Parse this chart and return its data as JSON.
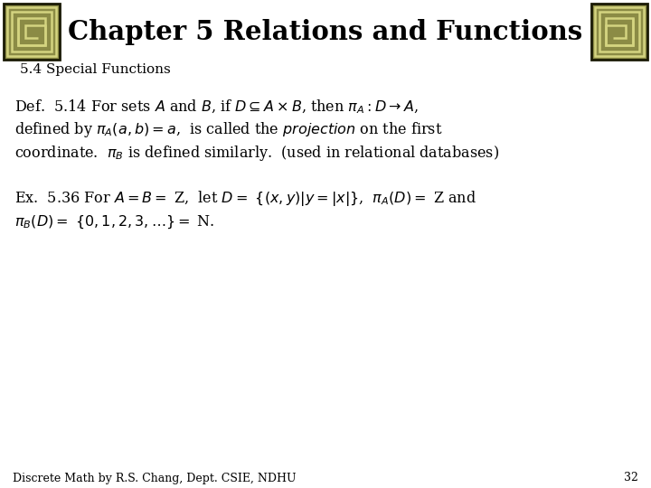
{
  "title": "Chapter 5 Relations and Functions",
  "subtitle": "5.4 Special Functions",
  "bg_color": "#ffffff",
  "title_color": "#000000",
  "corner_bg": "#8b8b45",
  "corner_light": "#d4d480",
  "corner_dark": "#1a1a05",
  "footer_text": "Discrete Math by R.S. Chang, Dept. CSIE, NDHU",
  "page_number": "32"
}
